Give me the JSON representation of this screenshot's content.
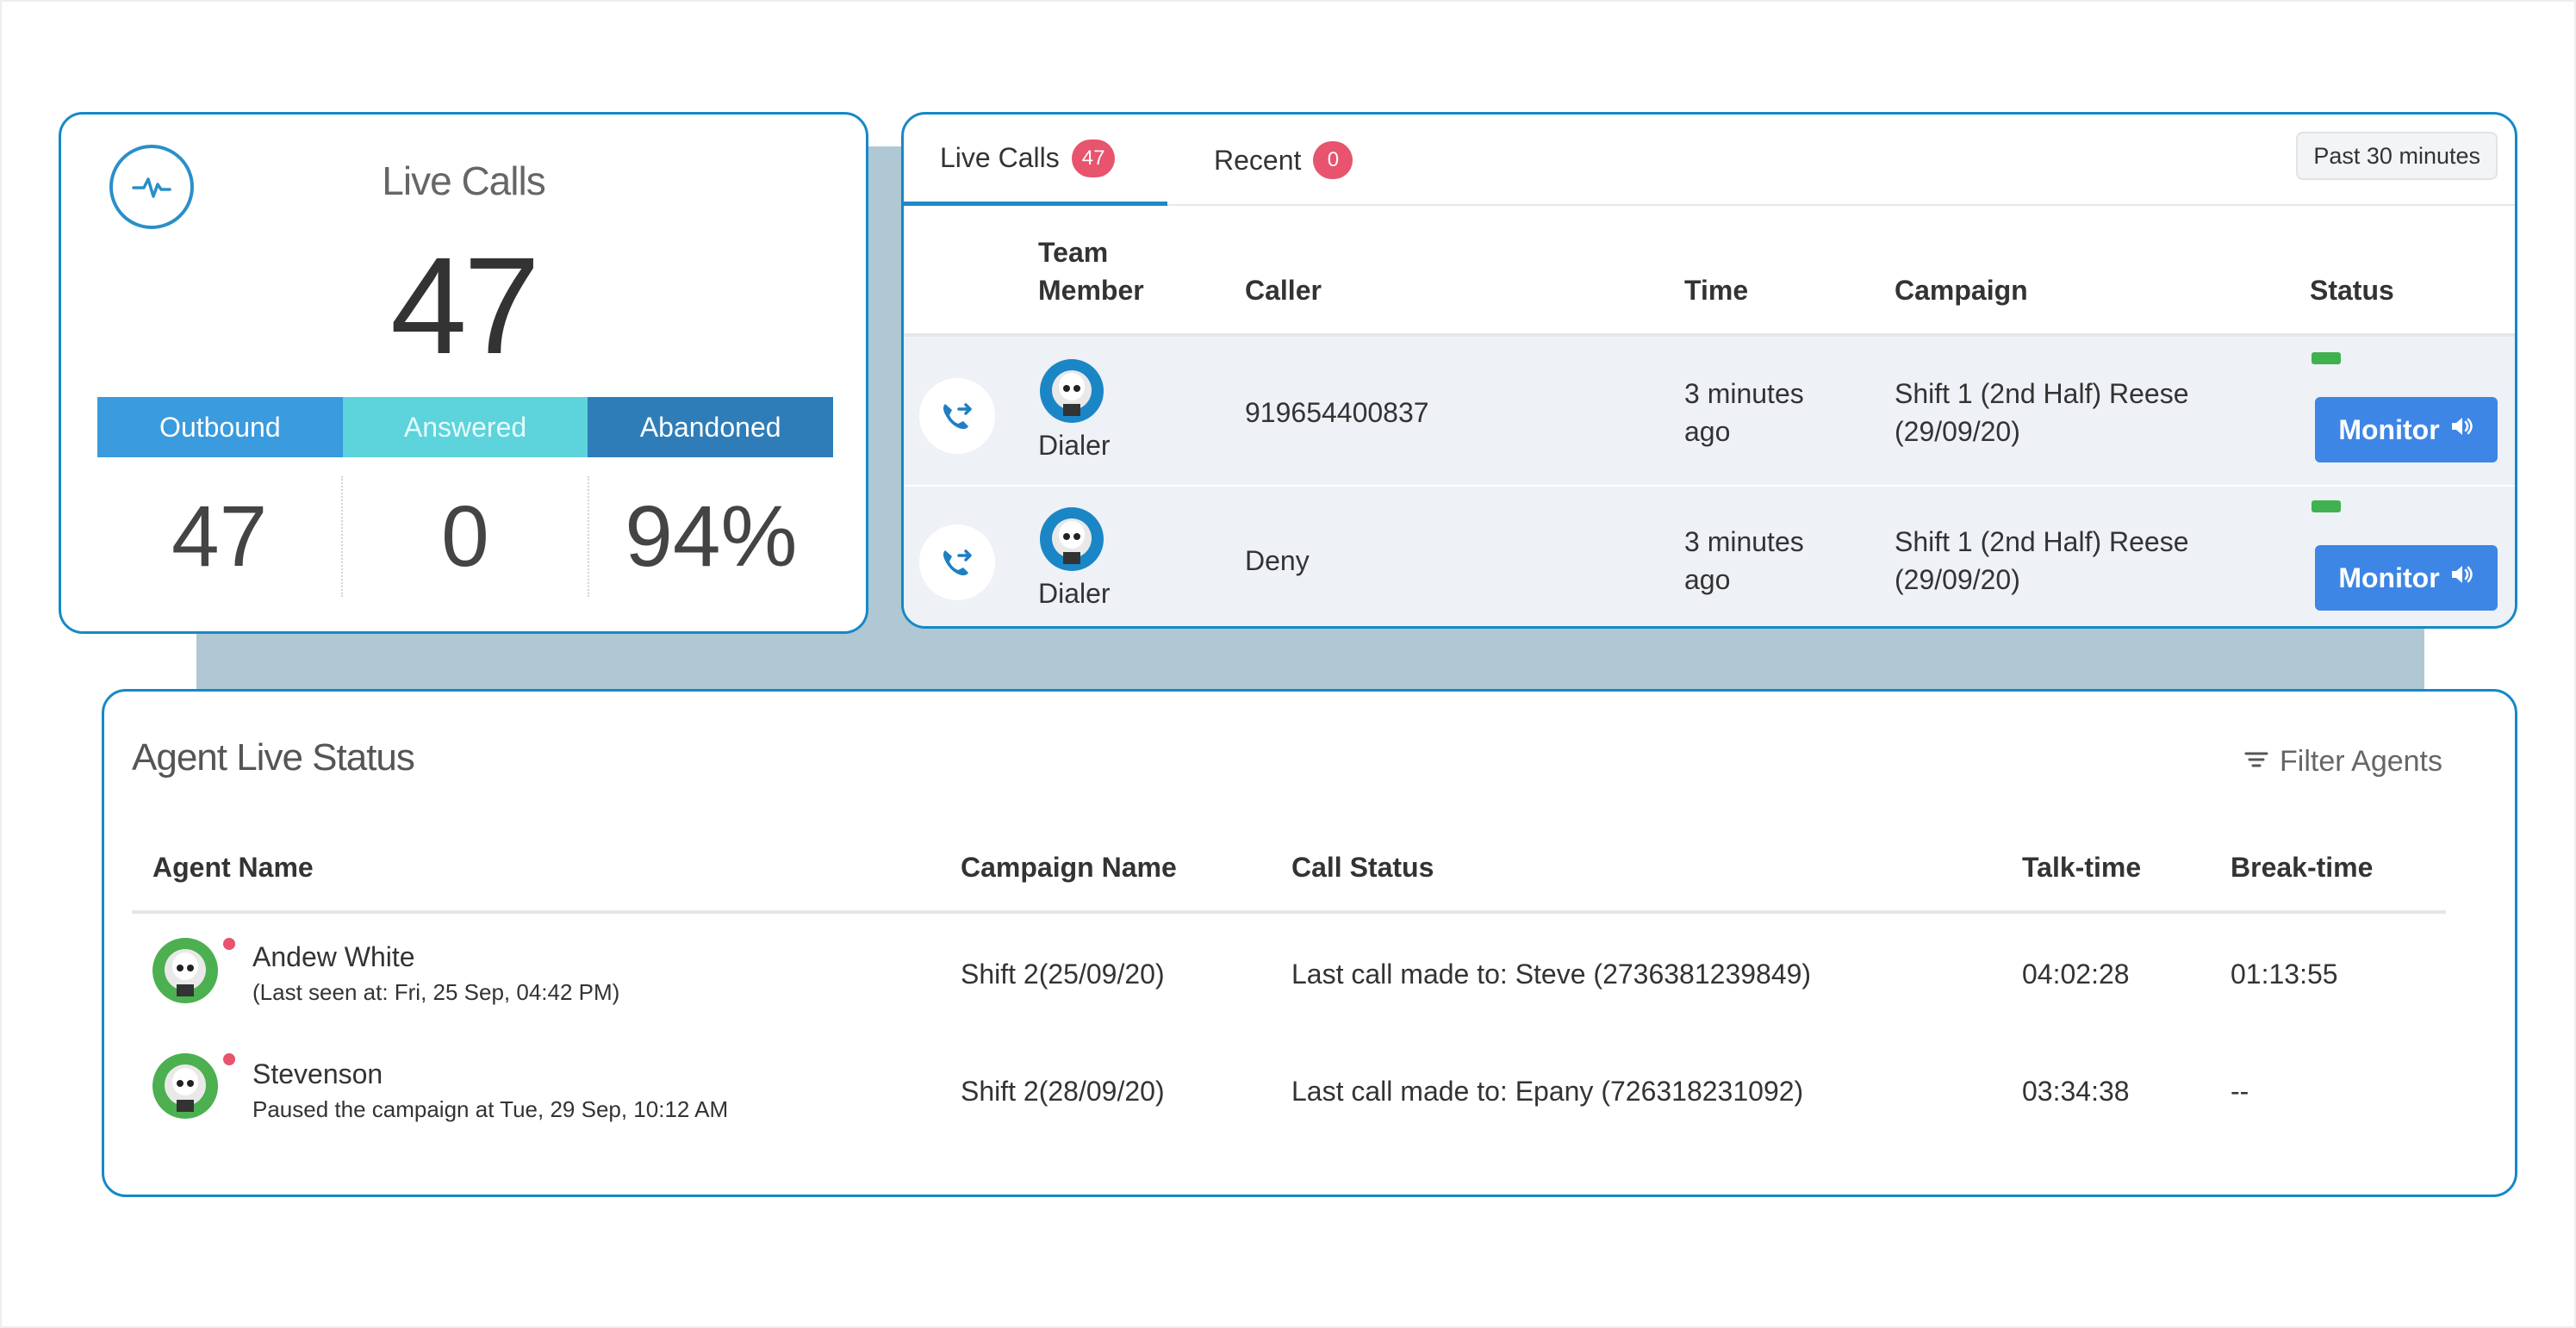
{
  "summary": {
    "title": "Live Calls",
    "count": "47",
    "stats": [
      {
        "label": "Outbound",
        "value": "47"
      },
      {
        "label": "Answered",
        "value": "0"
      },
      {
        "label": "Abandoned",
        "value": "94%"
      }
    ]
  },
  "calls_panel": {
    "tabs": [
      {
        "label": "Live Calls",
        "badge": "47"
      },
      {
        "label": "Recent",
        "badge": "0"
      }
    ],
    "range_button": "Past 30 minutes",
    "headers": {
      "team_member_line1": "Team",
      "team_member_line2": "Member",
      "caller": "Caller",
      "time": "Time",
      "campaign": "Campaign",
      "status": "Status"
    },
    "rows": [
      {
        "member": "Dialer",
        "caller": "919654400837",
        "time_line1": "3 minutes",
        "time_line2": "ago",
        "campaign_line1": "Shift 1 (2nd Half) Reese",
        "campaign_line2": "(29/09/20)",
        "monitor": "Monitor"
      },
      {
        "member": "Dialer",
        "caller": "Deny",
        "time_line1": "3 minutes",
        "time_line2": "ago",
        "campaign_line1": "Shift 1 (2nd Half) Reese",
        "campaign_line2": "(29/09/20)",
        "monitor": "Monitor"
      }
    ]
  },
  "agents_panel": {
    "title": "Agent Live Status",
    "filter_label": "Filter Agents",
    "headers": {
      "agent": "Agent Name",
      "campaign": "Campaign Name",
      "call_status": "Call Status",
      "talk": "Talk-time",
      "break": "Break-time"
    },
    "rows": [
      {
        "name": "Andew White",
        "sub": "(Last seen at: Fri, 25 Sep, 04:42 PM)",
        "campaign": "Shift 2(25/09/20)",
        "call_status": "Last call made to: Steve (2736381239849)",
        "talk": "04:02:28",
        "break": "01:13:55"
      },
      {
        "name": "Stevenson",
        "sub": "Paused the campaign at Tue, 29 Sep, 10:12 AM",
        "campaign": "Shift 2(28/09/20)",
        "call_status": "Last call made to: Epany (726318231092)",
        "talk": "03:34:38",
        "break": "--"
      }
    ]
  },
  "colors": {
    "brand_border": "#1589c6",
    "outbound": "#3a9bde",
    "answered": "#5dd3dc",
    "abandoned": "#2f7db8",
    "badge": "#e8536e",
    "monitor": "#3d86e6",
    "status_active": "#3fb24f"
  },
  "icons": [
    "pulse-icon",
    "call-forward-icon",
    "speaker-icon",
    "filter-icon",
    "avatar"
  ]
}
